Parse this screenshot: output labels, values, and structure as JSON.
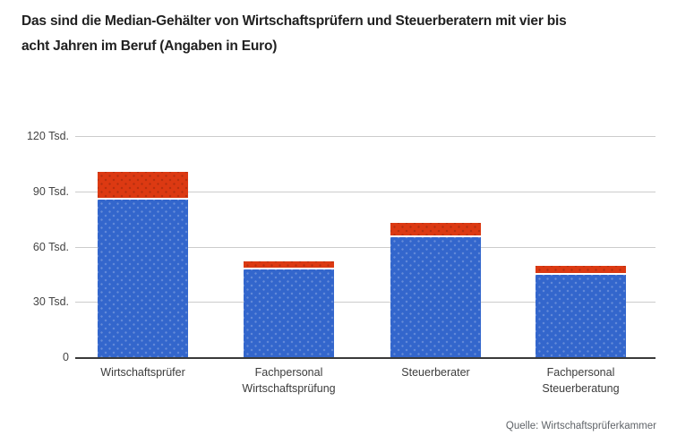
{
  "header": {
    "title_lines": [
      "Das sind die Median-Gehälter von Wirtschaftsprüfern und Steuerberatern mit vier bis",
      "acht Jahren im Beruf (Angaben in Euro)"
    ]
  },
  "footer": {
    "source": "Quelle: Wirtschaftsprüferkammer"
  },
  "chart_data": {
    "type": "bar",
    "stacked": true,
    "title": "Das sind die Median-Gehälter von Wirtschaftsprüfern und Steuerberatern mit vier bis acht Jahren im Beruf (Angaben in Euro)",
    "categories": [
      "Wirtschaftsprüfer",
      "Fachpersonal Wirtschaftsprüfung",
      "Steuerberater",
      "Fachpersonal Steuerberatung"
    ],
    "category_label_lines": [
      [
        "Wirtschaftsprüfer"
      ],
      [
        "Fachpersonal",
        "Wirtschaftsprüfung"
      ],
      [
        "Steuerberater"
      ],
      [
        "Fachpersonal",
        "Steuerberatung"
      ]
    ],
    "series": [
      {
        "name": "blue-segment",
        "color": "#3366cc",
        "values": [
          85500,
          47500,
          65000,
          44500
        ]
      },
      {
        "name": "red-segment",
        "color": "#dc3912",
        "values": [
          15000,
          4500,
          8000,
          5000
        ]
      }
    ],
    "totals": [
      100500,
      52000,
      73000,
      49500
    ],
    "y_axis": {
      "max": 120000,
      "ticks": [
        {
          "value": 120000,
          "label": "120 Tsd."
        },
        {
          "value": 90000,
          "label": "90 Tsd."
        },
        {
          "value": 60000,
          "label": "60 Tsd."
        },
        {
          "value": 30000,
          "label": "30 Tsd."
        },
        {
          "value": 0,
          "label": "0"
        }
      ]
    },
    "grid": true,
    "legend": "none",
    "source": "Quelle: Wirtschaftsprüferkammer",
    "colors": {
      "blue": "#3366cc",
      "red": "#dc3912",
      "gridline": "#cccccc",
      "axis_line": "#3a3a3a",
      "title_text": "#212121",
      "label_text": "#444444",
      "source_text": "#5f6368"
    }
  }
}
